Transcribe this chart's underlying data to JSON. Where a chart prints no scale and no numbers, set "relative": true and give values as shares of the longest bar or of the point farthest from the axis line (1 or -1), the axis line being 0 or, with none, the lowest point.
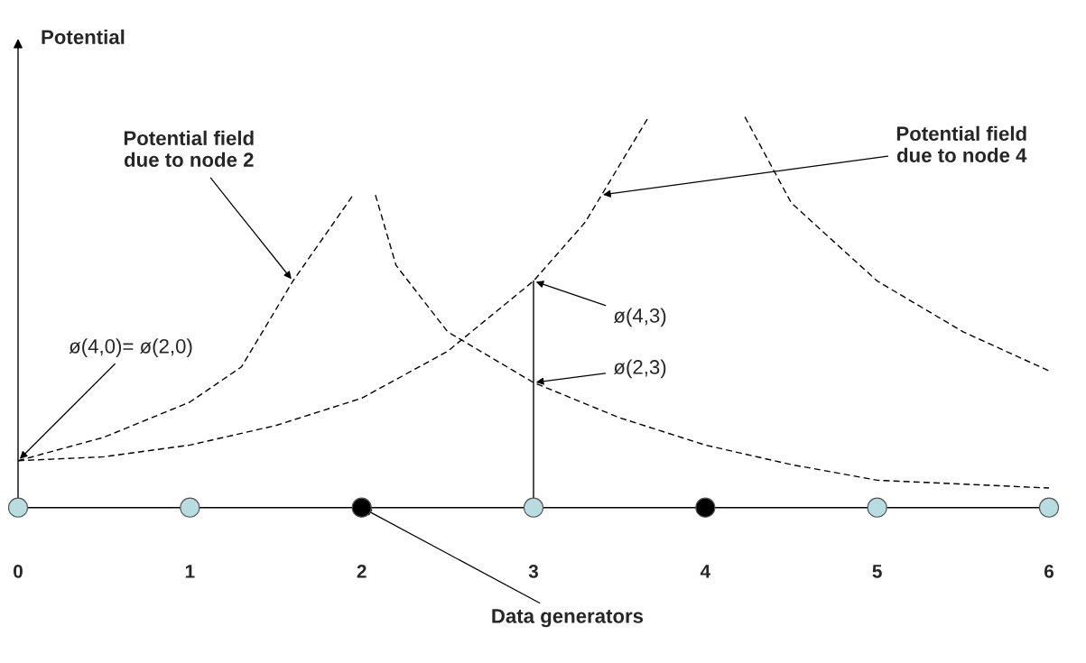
{
  "chart_data": {
    "type": "line",
    "relative": true,
    "ylabel": "Potential",
    "xticks": [
      0,
      1,
      2,
      3,
      4,
      5,
      6
    ],
    "xlim": [
      0,
      6
    ],
    "grid": false,
    "legend": false,
    "series": [
      {
        "line_style": "dashed",
        "color": "#000000",
        "x": [
          0,
          0.5,
          1,
          1.3,
          1.6,
          1.95
        ],
        "values": [
          0.12,
          0.18,
          0.27,
          0.36,
          0.58,
          0.8
        ]
      },
      {
        "line_style": "dashed",
        "color": "#000000",
        "x": [
          2.08,
          2.2,
          2.5,
          3,
          3.5,
          4,
          4.5,
          5,
          6
        ],
        "values": [
          0.8,
          0.62,
          0.45,
          0.32,
          0.23,
          0.16,
          0.11,
          0.07,
          0.05
        ]
      },
      {
        "line_style": "dashed",
        "color": "#000000",
        "x": [
          0,
          0.5,
          1,
          1.5,
          2,
          2.5,
          3,
          3.3,
          3.67
        ],
        "values": [
          0.12,
          0.13,
          0.16,
          0.21,
          0.28,
          0.4,
          0.58,
          0.73,
          1.0
        ]
      },
      {
        "line_style": "dashed",
        "color": "#000000",
        "x": [
          4.23,
          4.5,
          5,
          5.5,
          6
        ],
        "values": [
          1.0,
          0.78,
          0.58,
          0.45,
          0.35
        ]
      },
      {
        "line_style": "solid",
        "color": "#000000",
        "x": [
          3,
          3
        ],
        "values": [
          0,
          0.58
        ]
      },
      {
        "type": "scatter",
        "marker": "circle",
        "x": [
          0,
          1,
          2,
          3,
          4,
          5,
          6
        ],
        "values": [
          0,
          0,
          0,
          0,
          0,
          0,
          0
        ],
        "colors": [
          "#b7dde0",
          "#b7dde0",
          "#000000",
          "#b7dde0",
          "#000000",
          "#b7dde0",
          "#b7dde0"
        ]
      }
    ],
    "annotations": [
      {
        "text": "Potential field\ndue to node 2",
        "x": 1.6,
        "y": 0.58
      },
      {
        "text": "Potential field\ndue to node 4",
        "x": 3.39,
        "y": 0.8
      },
      {
        "text": "ø(4,0)= ø(2,0)",
        "x": 0,
        "y": 0.12
      },
      {
        "text": "ø(4,3)",
        "x": 3,
        "y": 0.58
      },
      {
        "text": "ø(2,3)",
        "x": 3,
        "y": 0.32
      },
      {
        "text": "Data generators",
        "x": 2,
        "y": 0
      }
    ]
  }
}
